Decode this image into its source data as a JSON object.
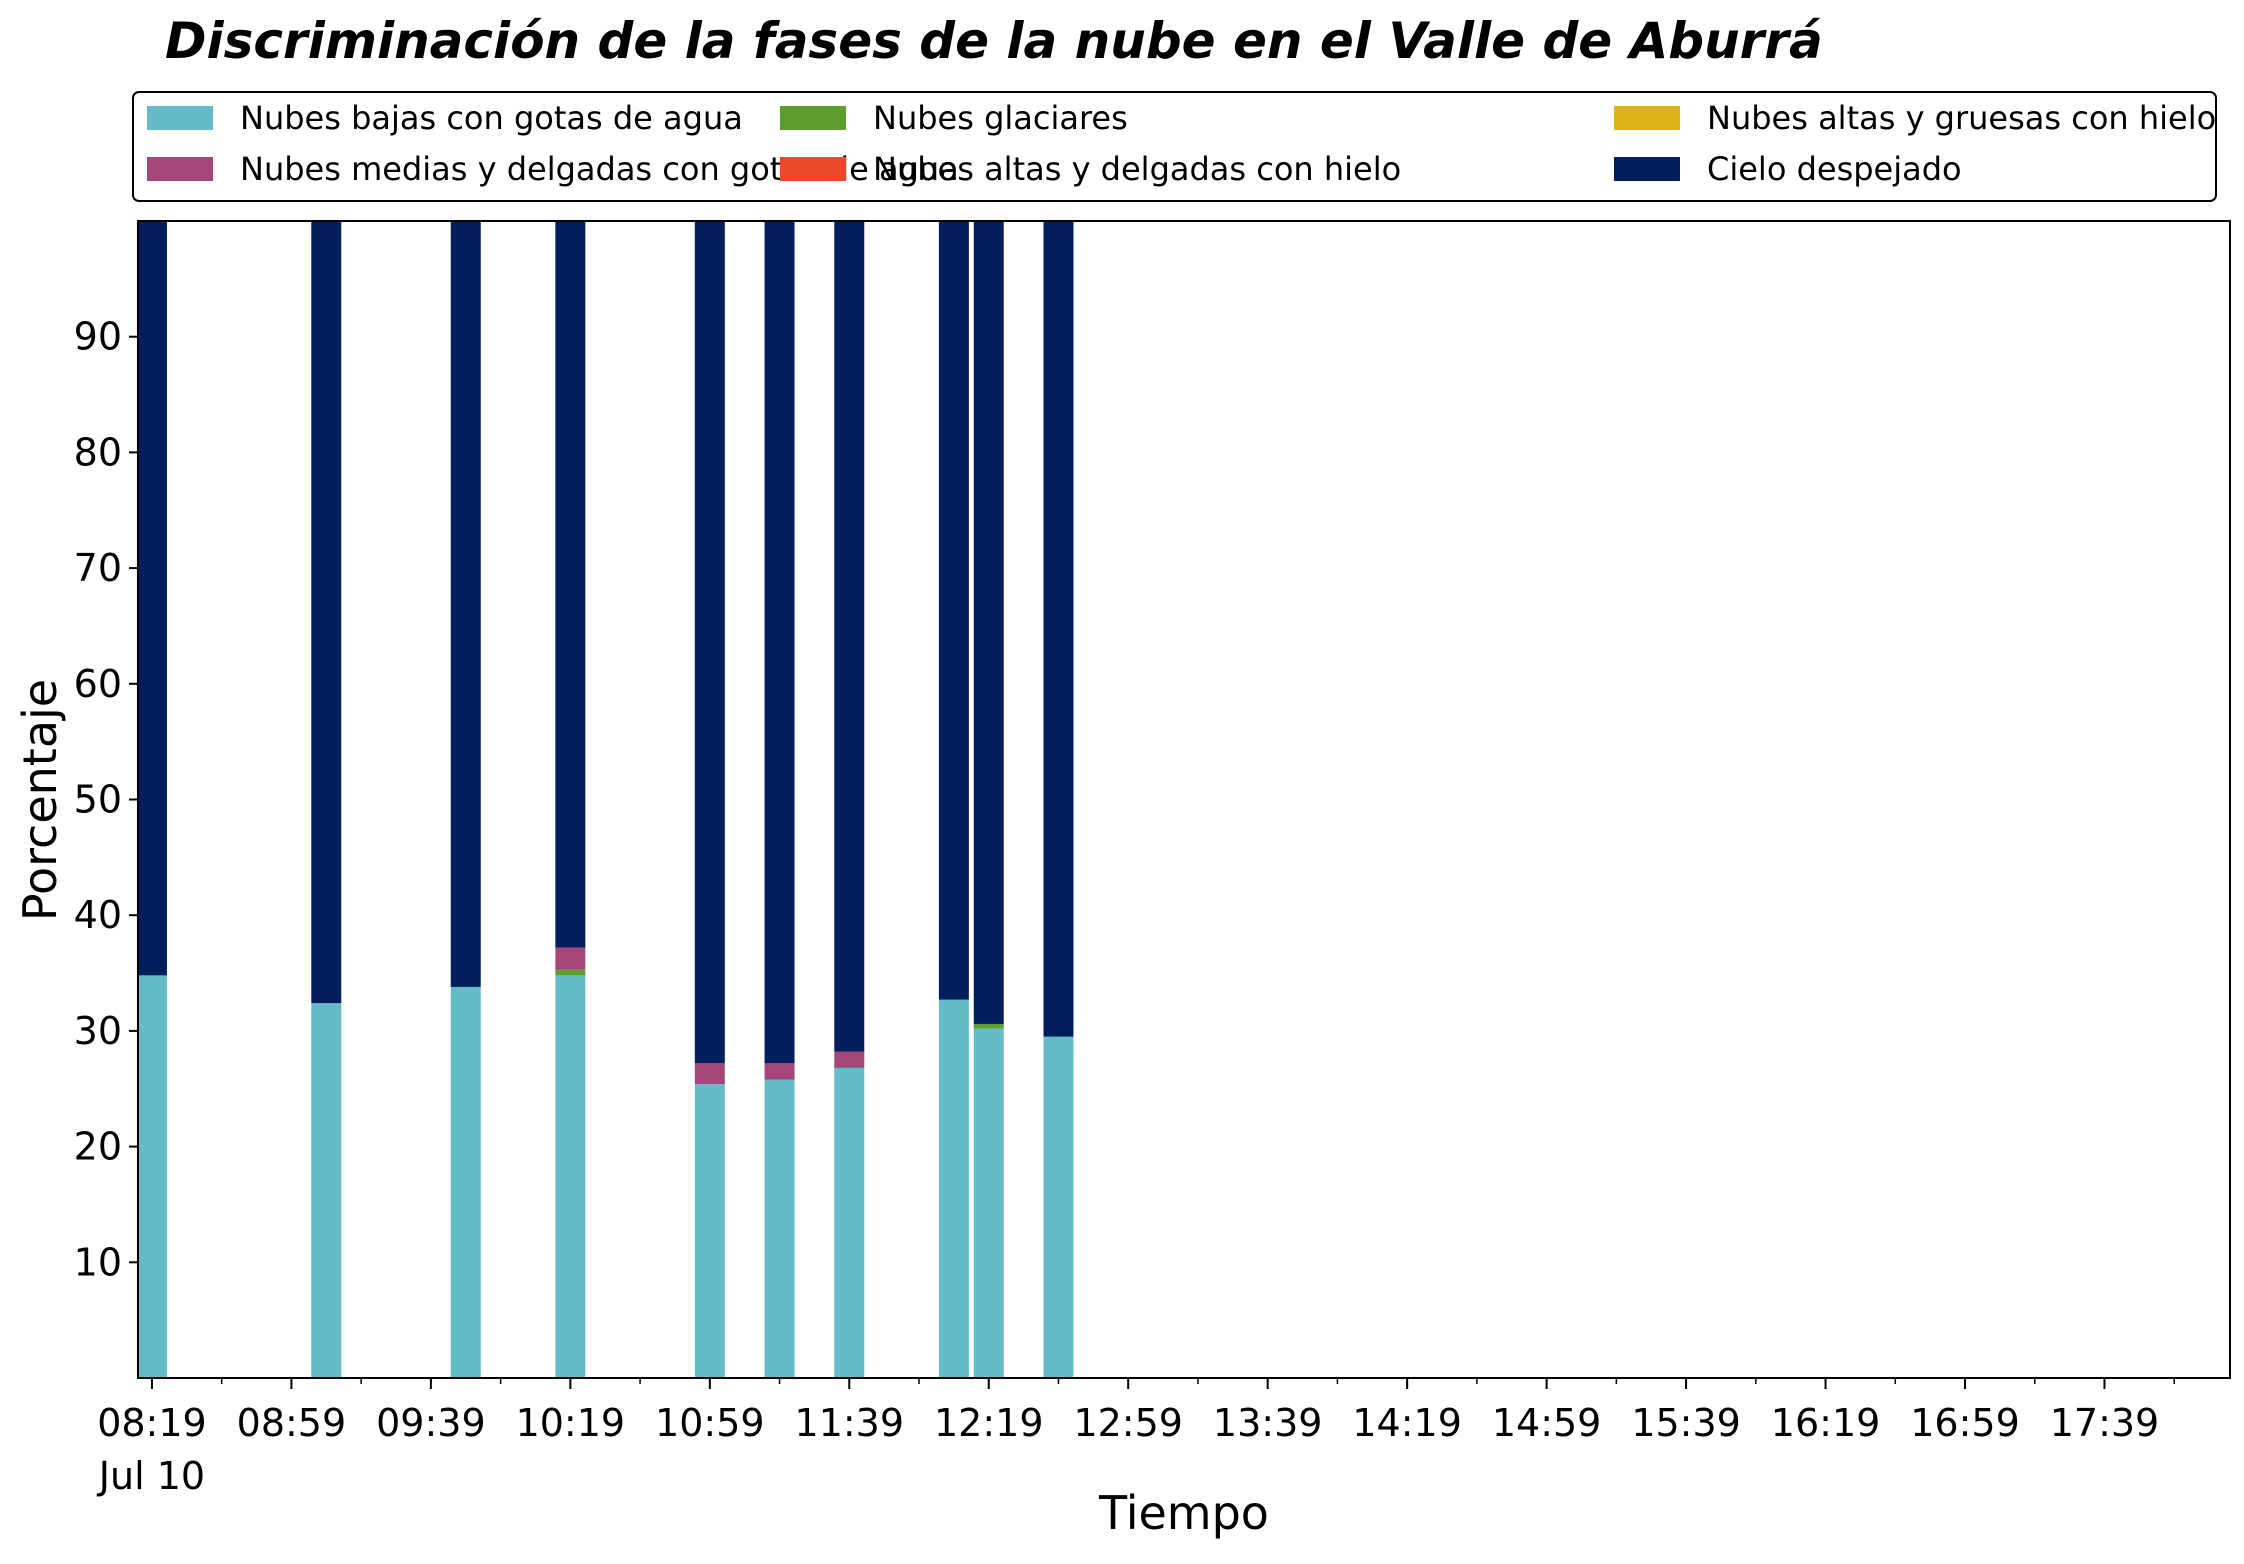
{
  "chart_data": {
    "type": "bar",
    "stacked": true,
    "title": "Discriminación de la fases de la nube en el Valle de Aburrá",
    "xlabel": "Tiempo",
    "ylabel": "Porcentaje",
    "ylim": [
      0,
      100
    ],
    "yticks": [
      10,
      20,
      30,
      40,
      50,
      60,
      70,
      80,
      90
    ],
    "date_label": "Jul 10",
    "x_range": [
      "08:15",
      "18:15"
    ],
    "x_major_ticks": [
      "08:19",
      "08:59",
      "09:39",
      "10:19",
      "10:59",
      "11:39",
      "12:19",
      "12:59",
      "13:39",
      "14:19",
      "14:59",
      "15:39",
      "16:19",
      "16:59",
      "17:39"
    ],
    "x_minor_tick_interval_minutes": 20,
    "bar_width_minutes": 8.6,
    "legend_position": "top",
    "grid": false,
    "x": [
      "08:19",
      "09:09",
      "09:49",
      "10:19",
      "10:59",
      "11:19",
      "11:39",
      "12:09",
      "12:19",
      "12:39"
    ],
    "series": [
      {
        "name": "Nubes bajas con gotas de agua",
        "color": "#65BCC8",
        "values": [
          34.8,
          32.4,
          33.8,
          34.8,
          25.4,
          25.8,
          26.8,
          32.7,
          30.2,
          29.5
        ]
      },
      {
        "name": "Nubes glaciares",
        "color": "#5E9E2E",
        "values": [
          0,
          0,
          0,
          0.5,
          0,
          0,
          0,
          0,
          0.4,
          0
        ]
      },
      {
        "name": "Nubes altas y gruesas con hielo",
        "color": "#DDB215",
        "values": [
          0,
          0,
          0,
          0,
          0,
          0,
          0,
          0,
          0,
          0
        ]
      },
      {
        "name": "Nubes medias y delgadas con gotas de agua",
        "color": "#A44778",
        "values": [
          0,
          0,
          0,
          1.9,
          1.8,
          1.4,
          1.4,
          0,
          0,
          0
        ]
      },
      {
        "name": "Nubes altas y delgadas con hielo",
        "color": "#EA4A2A",
        "values": [
          0,
          0,
          0,
          0,
          0,
          0,
          0,
          0,
          0,
          0
        ]
      },
      {
        "name": "Cielo despejado",
        "color": "#021F5C",
        "values": [
          65.2,
          67.6,
          66.2,
          62.8,
          72.8,
          72.8,
          71.8,
          67.3,
          69.4,
          70.5
        ]
      }
    ]
  }
}
